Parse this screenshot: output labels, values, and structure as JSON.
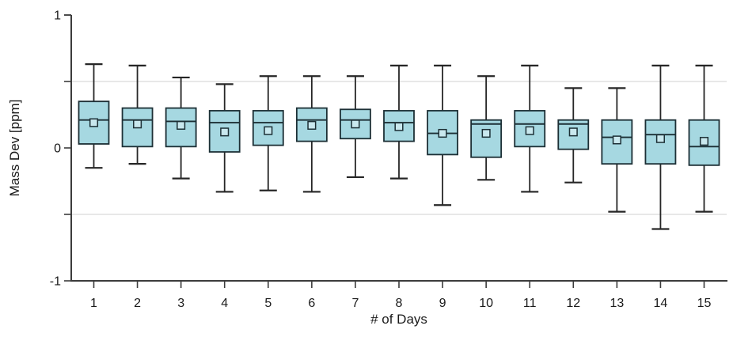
{
  "chart_data": {
    "type": "box",
    "title": "",
    "xlabel": "# of Days",
    "ylabel": "Mass Dev [ppm]",
    "ylim": [
      -1,
      1
    ],
    "gridlines_y": [
      0.5,
      -0.5
    ],
    "legend": "none",
    "mean_marker": "open square",
    "y_ticks": [
      {
        "value": 1,
        "label": "1"
      },
      {
        "value": 0.5,
        "label": ""
      },
      {
        "value": 0,
        "label": "0"
      },
      {
        "value": -0.5,
        "label": ""
      },
      {
        "value": -1,
        "label": "-1"
      }
    ],
    "categories": [
      "1",
      "2",
      "3",
      "4",
      "5",
      "6",
      "7",
      "8",
      "9",
      "10",
      "11",
      "12",
      "13",
      "14",
      "15"
    ],
    "boxes": [
      {
        "day": "1",
        "whisker_low": -0.15,
        "q1": 0.03,
        "median": 0.21,
        "mean": 0.19,
        "q3": 0.35,
        "whisker_high": 0.63
      },
      {
        "day": "2",
        "whisker_low": -0.12,
        "q1": 0.01,
        "median": 0.21,
        "mean": 0.18,
        "q3": 0.3,
        "whisker_high": 0.62
      },
      {
        "day": "3",
        "whisker_low": -0.23,
        "q1": 0.01,
        "median": 0.2,
        "mean": 0.17,
        "q3": 0.3,
        "whisker_high": 0.53
      },
      {
        "day": "4",
        "whisker_low": -0.33,
        "q1": -0.03,
        "median": 0.19,
        "mean": 0.12,
        "q3": 0.28,
        "whisker_high": 0.48
      },
      {
        "day": "5",
        "whisker_low": -0.32,
        "q1": 0.02,
        "median": 0.19,
        "mean": 0.13,
        "q3": 0.28,
        "whisker_high": 0.54
      },
      {
        "day": "6",
        "whisker_low": -0.33,
        "q1": 0.05,
        "median": 0.21,
        "mean": 0.17,
        "q3": 0.3,
        "whisker_high": 0.54
      },
      {
        "day": "7",
        "whisker_low": -0.22,
        "q1": 0.07,
        "median": 0.21,
        "mean": 0.18,
        "q3": 0.29,
        "whisker_high": 0.54
      },
      {
        "day": "8",
        "whisker_low": -0.23,
        "q1": 0.05,
        "median": 0.19,
        "mean": 0.16,
        "q3": 0.28,
        "whisker_high": 0.62
      },
      {
        "day": "9",
        "whisker_low": -0.43,
        "q1": -0.05,
        "median": 0.11,
        "mean": 0.11,
        "q3": 0.28,
        "whisker_high": 0.62
      },
      {
        "day": "10",
        "whisker_low": -0.24,
        "q1": -0.07,
        "median": 0.18,
        "mean": 0.11,
        "q3": 0.21,
        "whisker_high": 0.54
      },
      {
        "day": "11",
        "whisker_low": -0.33,
        "q1": 0.01,
        "median": 0.18,
        "mean": 0.13,
        "q3": 0.28,
        "whisker_high": 0.62
      },
      {
        "day": "12",
        "whisker_low": -0.26,
        "q1": -0.01,
        "median": 0.18,
        "mean": 0.12,
        "q3": 0.21,
        "whisker_high": 0.45
      },
      {
        "day": "13",
        "whisker_low": -0.48,
        "q1": -0.12,
        "median": 0.08,
        "mean": 0.06,
        "q3": 0.21,
        "whisker_high": 0.45
      },
      {
        "day": "14",
        "whisker_low": -0.61,
        "q1": -0.12,
        "median": 0.1,
        "mean": 0.07,
        "q3": 0.21,
        "whisker_high": 0.62
      },
      {
        "day": "15",
        "whisker_low": -0.48,
        "q1": -0.13,
        "median": 0.01,
        "mean": 0.05,
        "q3": 0.21,
        "whisker_high": 0.62
      }
    ],
    "colors": {
      "box_fill": "#a6d8e1",
      "box_stroke": "#1c2f35",
      "whisker": "#262626",
      "median": "#1c2f35",
      "mean_fill": "#c9e8ee",
      "gridline": "#d9d9d9",
      "axis": "#3c3c3c",
      "text": "#1a1a1a",
      "background": "#ffffff"
    }
  }
}
